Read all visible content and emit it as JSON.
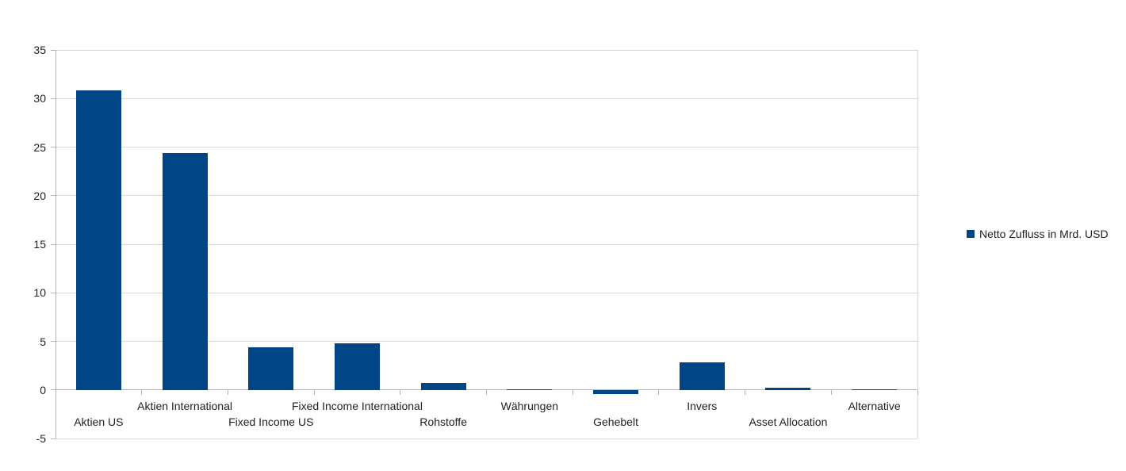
{
  "chart_data": {
    "type": "bar",
    "title": "",
    "xlabel": "",
    "ylabel": "",
    "categories": [
      "Aktien US",
      "Aktien International",
      "Fixed Income US",
      "Fixed Income International",
      "Rohstoffe",
      "Währungen",
      "Gehebelt",
      "Invers",
      "Asset Allocation",
      "Alternative"
    ],
    "series": [
      {
        "name": "Netto Zufluss in Mrd. USD",
        "values": [
          30.8,
          24.4,
          4.4,
          4.8,
          0.7,
          0.1,
          -0.4,
          2.8,
          0.2,
          0.1
        ]
      }
    ],
    "ylim": [
      -5,
      35
    ],
    "yticks": [
      35,
      30,
      25,
      20,
      15,
      10,
      5,
      0,
      -5
    ],
    "grid": true,
    "legend_position": "right",
    "colors": {
      "bar": "#004586",
      "gridline": "#d9d9d9",
      "axis": "#b3b3b3",
      "text": "#1f1f1f",
      "background": "#ffffff"
    }
  }
}
